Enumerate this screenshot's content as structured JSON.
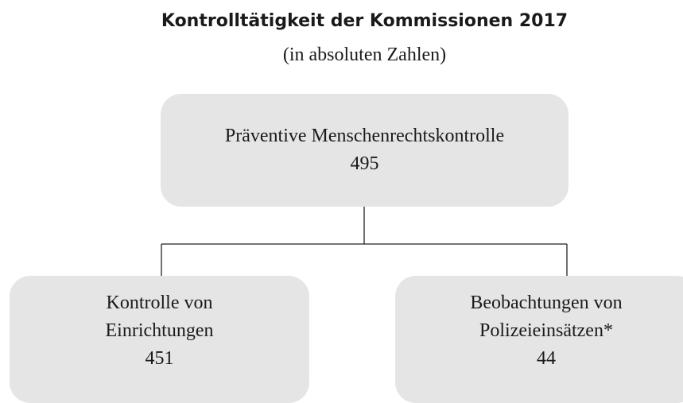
{
  "title": "Kontrolltätigkeit der Kommissionen 2017",
  "subtitle": "(in absoluten Zahlen)",
  "nodes": [
    {
      "label": [
        "Präventive Menschenrechtskontrolle"
      ],
      "value": 495
    },
    {
      "label": [
        "Kontrolle von",
        "Einrichtungen"
      ],
      "value": 451
    },
    {
      "label": [
        "Beobachtungen von",
        "Polizeieinsätzen*"
      ],
      "value": 44
    }
  ]
}
